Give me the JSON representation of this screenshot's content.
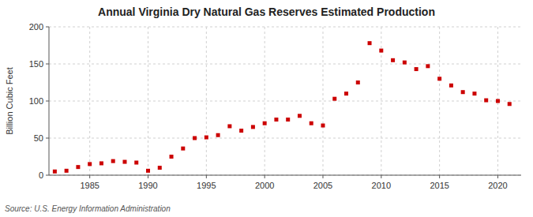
{
  "chart_data": {
    "type": "scatter",
    "title": "Annual Virginia Dry Natural Gas Reserves Estimated Production",
    "y_label": "Billion Cubic Feet",
    "annotation": "Source: U.S. Energy Information Administration",
    "x": [
      1982,
      1983,
      1984,
      1985,
      1986,
      1987,
      1988,
      1989,
      1990,
      1991,
      1992,
      1993,
      1994,
      1995,
      1996,
      1997,
      1998,
      1999,
      2000,
      2001,
      2002,
      2003,
      2004,
      2005,
      2006,
      2007,
      2008,
      2009,
      2010,
      2011,
      2012,
      2013,
      2014,
      2015,
      2016,
      2017,
      2018,
      2019,
      2020,
      2021
    ],
    "values": [
      5,
      6,
      11,
      15,
      16,
      19,
      18,
      17,
      6,
      10,
      25,
      36,
      50,
      51,
      54,
      66,
      60,
      65,
      70,
      75,
      75,
      80,
      70,
      67,
      103,
      110,
      125,
      178,
      168,
      155,
      152,
      143,
      147,
      130,
      121,
      112,
      110,
      101,
      100,
      96
    ],
    "color": "#cc0000",
    "marker": "square",
    "xlim": [
      1981.5,
      2022
    ],
    "xticks": [
      1985,
      1990,
      1995,
      2000,
      2005,
      2010,
      2015,
      2020
    ],
    "ylim": [
      0,
      200
    ],
    "yticks": [
      0,
      50,
      100,
      150,
      200
    ],
    "grid": true
  }
}
